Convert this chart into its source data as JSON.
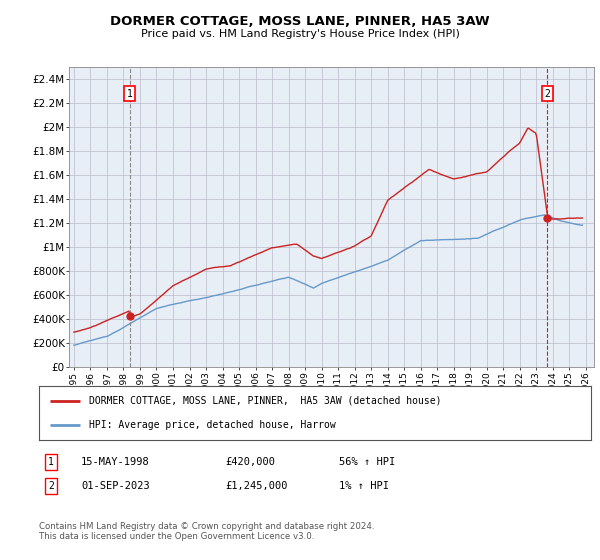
{
  "title": "DORMER COTTAGE, MOSS LANE, PINNER, HA5 3AW",
  "subtitle": "Price paid vs. HM Land Registry's House Price Index (HPI)",
  "ylabel_ticks": [
    "£0",
    "£200K",
    "£400K",
    "£600K",
    "£800K",
    "£1M",
    "£1.2M",
    "£1.4M",
    "£1.6M",
    "£1.8M",
    "£2M",
    "£2.2M",
    "£2.4M"
  ],
  "ytick_values": [
    0,
    200000,
    400000,
    600000,
    800000,
    1000000,
    1200000,
    1400000,
    1600000,
    1800000,
    2000000,
    2200000,
    2400000
  ],
  "ylim": [
    0,
    2500000
  ],
  "xlim_start": 1994.7,
  "xlim_end": 2026.5,
  "hpi_color": "#6699cc",
  "price_color": "#cc2222",
  "chart_bg": "#e8eef5",
  "marker1_date": 1998.37,
  "marker1_value": 420000,
  "marker2_date": 2023.67,
  "marker2_value": 1245000,
  "legend_label1": "DORMER COTTAGE, MOSS LANE, PINNER,  HA5 3AW (detached house)",
  "legend_label2": "HPI: Average price, detached house, Harrow",
  "sale1_label": "15-MAY-1998",
  "sale1_price": "£420,000",
  "sale1_hpi": "56% ↑ HPI",
  "sale2_label": "01-SEP-2023",
  "sale2_price": "£1,245,000",
  "sale2_hpi": "1% ↑ HPI",
  "footer": "Contains HM Land Registry data © Crown copyright and database right 2024.\nThis data is licensed under the Open Government Licence v3.0.",
  "grid_color": "#bbbbcc",
  "bg_color": "#ffffff"
}
